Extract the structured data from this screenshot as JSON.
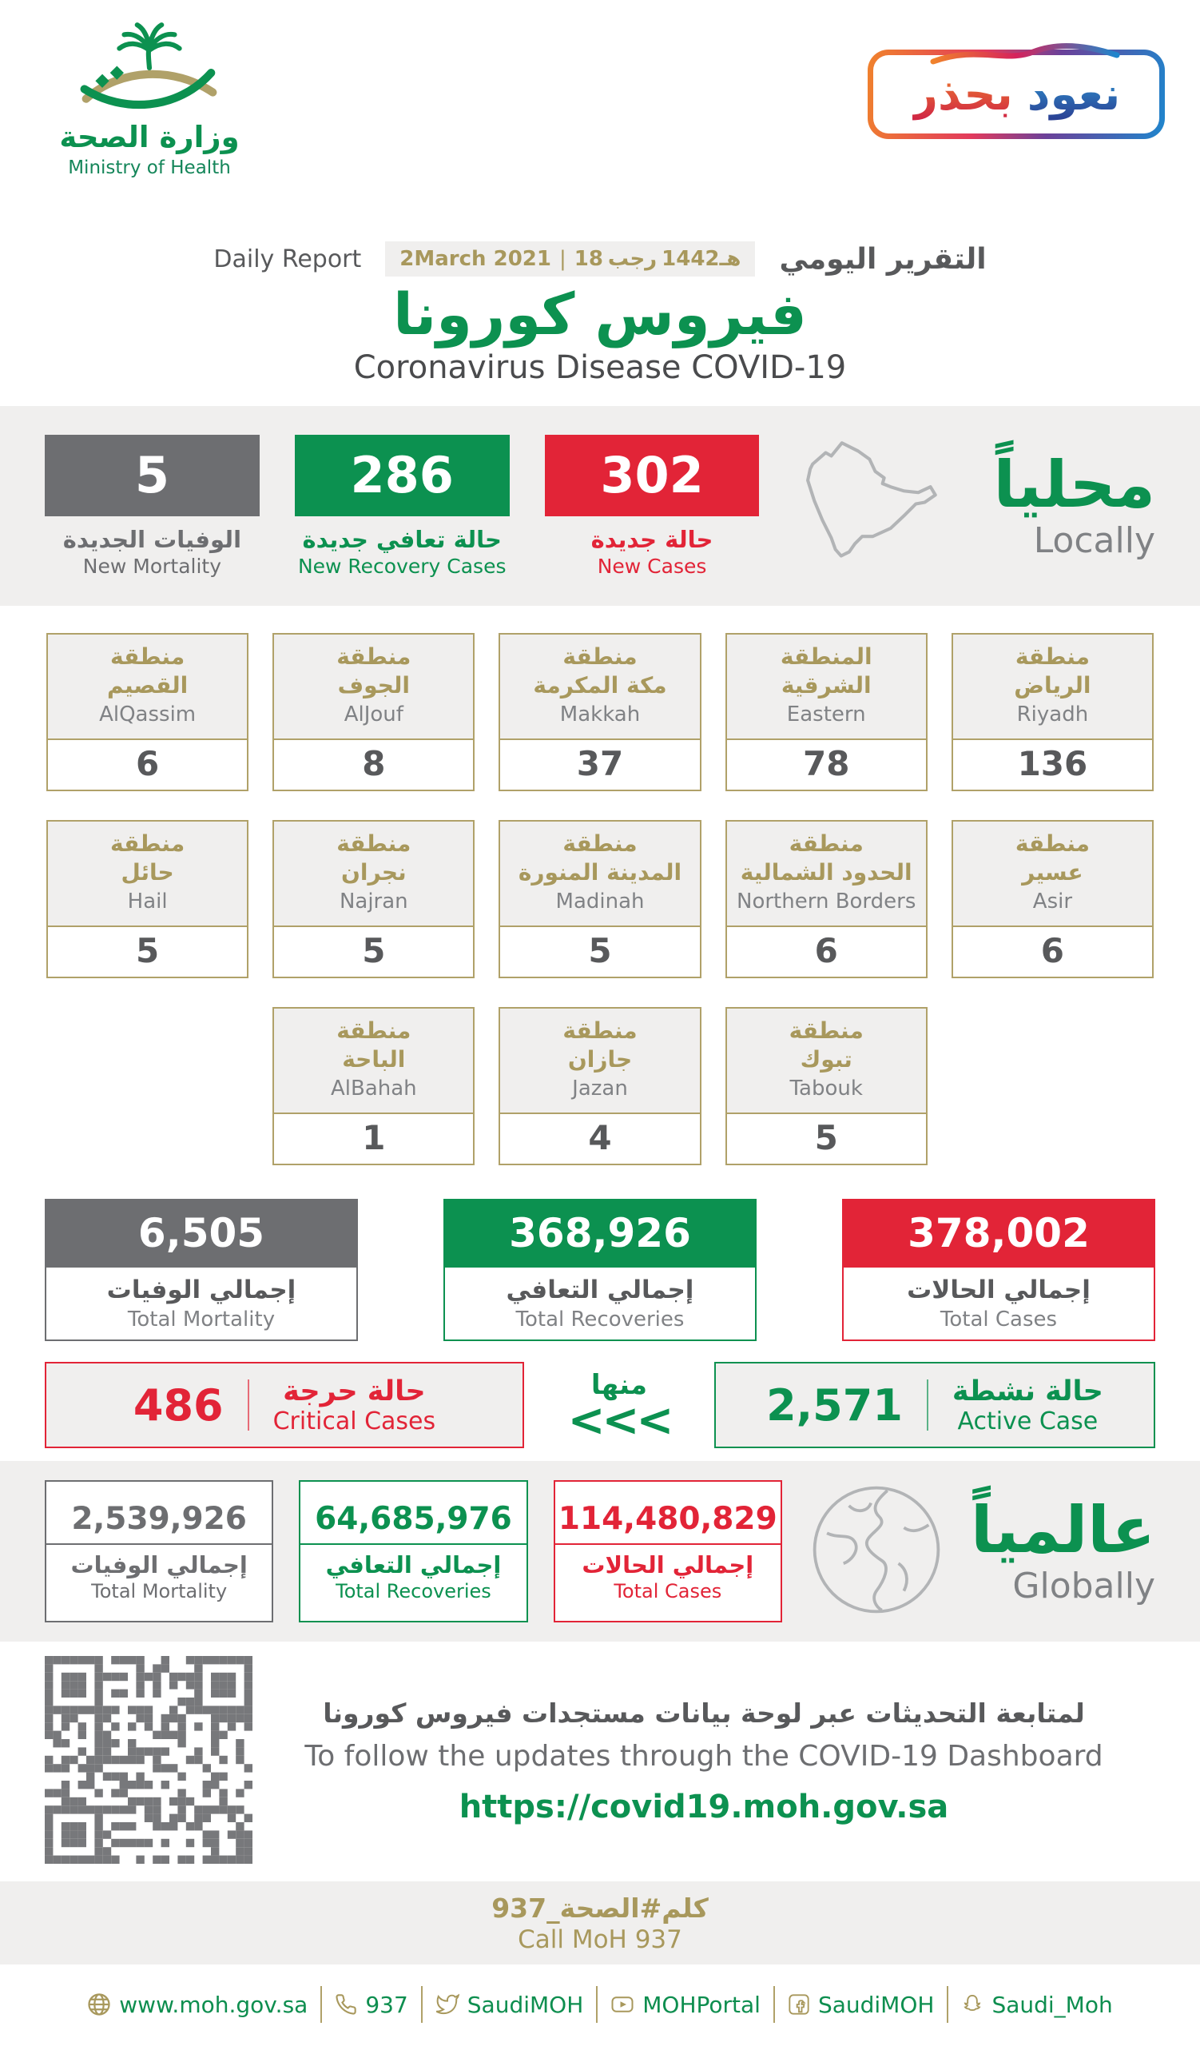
{
  "colors": {
    "green": "#0c9150",
    "red": "#e22437",
    "gray": "#6d6e71",
    "gold": "#a8985c",
    "card_border_gold": "#b0a169",
    "band_background": "#f0efee",
    "dark_text": "#58595b",
    "mid_text": "#808285"
  },
  "header": {
    "logo_arabic": "وزارة الصحة",
    "logo_english": "Ministry of Health",
    "badge_word_right": "نعود",
    "badge_word_left": "بحذر",
    "daily_report_en": "Daily Report",
    "daily_report_ar": "التقرير اليومي",
    "date_gregorian": "2March 2021",
    "date_separator": "|",
    "hijri_day": "18",
    "hijri_month": "رجب",
    "hijri_year": "1442هـ",
    "title_ar": "فيروس كورونا",
    "title_en": "Coronavirus Disease COVID-19"
  },
  "locally": {
    "heading_ar": "محلياً",
    "heading_en": "Locally",
    "new_mortality": {
      "value": "5",
      "label_ar": "الوفيات الجديدة",
      "label_en": "New Mortality"
    },
    "new_recoveries": {
      "value": "286",
      "label_ar": "حالة تعافي جديدة",
      "label_en": "New Recovery Cases"
    },
    "new_cases": {
      "value": "302",
      "label_ar": "حالة جديدة",
      "label_en": "New Cases"
    }
  },
  "regions": [
    {
      "ar1": "منطقة",
      "ar2": "الرياض",
      "en": "Riyadh",
      "value": "136"
    },
    {
      "ar1": "المنطقة",
      "ar2": "الشرقية",
      "en": "Eastern",
      "value": "78"
    },
    {
      "ar1": "منطقة",
      "ar2": "مكة المكرمة",
      "en": "Makkah",
      "value": "37"
    },
    {
      "ar1": "منطقة",
      "ar2": "الجوف",
      "en": "AlJouf",
      "value": "8"
    },
    {
      "ar1": "منطقة",
      "ar2": "القصيم",
      "en": "AlQassim",
      "value": "6"
    },
    {
      "ar1": "منطقة",
      "ar2": "عسير",
      "en": "Asir",
      "value": "6"
    },
    {
      "ar1": "منطقة",
      "ar2": "الحدود الشمالية",
      "en": "Northern Borders",
      "value": "6"
    },
    {
      "ar1": "منطقة",
      "ar2": "المدينة المنورة",
      "en": "Madinah",
      "value": "5"
    },
    {
      "ar1": "منطقة",
      "ar2": "نجران",
      "en": "Najran",
      "value": "5"
    },
    {
      "ar1": "منطقة",
      "ar2": "حائل",
      "en": "Hail",
      "value": "5"
    },
    {
      "ar1": "منطقة",
      "ar2": "تبوك",
      "en": "Tabouk",
      "value": "5"
    },
    {
      "ar1": "منطقة",
      "ar2": "جازان",
      "en": "Jazan",
      "value": "4"
    },
    {
      "ar1": "منطقة",
      "ar2": "الباحة",
      "en": "AlBahah",
      "value": "1"
    }
  ],
  "totals": {
    "mortality": {
      "value": "6,505",
      "label_ar": "إجمالي الوفيات",
      "label_en": "Total Mortality"
    },
    "recoveries": {
      "value": "368,926",
      "label_ar": "إجمالي التعافي",
      "label_en": "Total Recoveries"
    },
    "cases": {
      "value": "378,002",
      "label_ar": "إجمالي الحالات",
      "label_en": "Total Cases"
    }
  },
  "active_row": {
    "critical": {
      "value": "486",
      "label_ar": "حالة حرجة",
      "label_en": "Critical Cases"
    },
    "of_which_ar": "منها",
    "chevrons": "<<<",
    "active": {
      "value": "2,571",
      "label_ar": "حالة نشطة",
      "label_en": "Active Case"
    }
  },
  "globally": {
    "heading_ar": "عالمياً",
    "heading_en": "Globally",
    "mortality": {
      "value": "2,539,926",
      "label_ar": "إجمالي الوفيات",
      "label_en": "Total Mortality"
    },
    "recoveries": {
      "value": "64,685,976",
      "label_ar": "إجمالي التعافي",
      "label_en": "Total Recoveries"
    },
    "cases": {
      "value": "114,480,829",
      "label_ar": "إجمالي الحالات",
      "label_en": "Total Cases"
    }
  },
  "dashboard": {
    "line_ar": "لمتابعة التحديثات عبر لوحة بيانات مستجدات فيروس كورونا",
    "line_en": "To follow the updates through the COVID-19 Dashboard",
    "url": "https://covid19.moh.gov.sa"
  },
  "call": {
    "ar": "كلم#الصحة_937",
    "en": "Call MoH 937"
  },
  "footer": {
    "items": [
      {
        "icon": "globe-icon",
        "label": "www.moh.gov.sa"
      },
      {
        "icon": "phone-icon",
        "label": "937"
      },
      {
        "icon": "twitter-icon",
        "label": "SaudiMOH"
      },
      {
        "icon": "youtube-icon",
        "label": "MOHPortal"
      },
      {
        "icon": "facebook-icon",
        "label": "SaudiMOH"
      },
      {
        "icon": "snapchat-icon",
        "label": "Saudi_Moh"
      }
    ]
  }
}
